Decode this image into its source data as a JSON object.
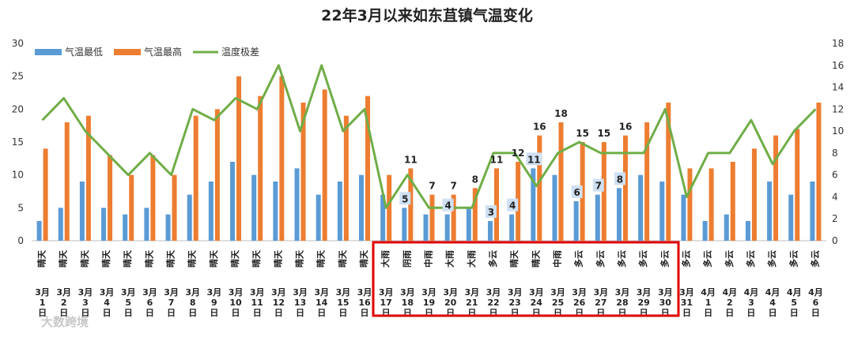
{
  "chart_data": {
    "type": "bar",
    "title": "22年3月以来如东苴镇气温变化",
    "categories": [
      "3月1日",
      "3月2日",
      "3月3日",
      "3月4日",
      "3月5日",
      "3月6日",
      "3月7日",
      "3月8日",
      "3月9日",
      "3月10日",
      "3月11日",
      "3月12日",
      "3月13日",
      "3月14日",
      "3月15日",
      "3月16日",
      "3月17日",
      "3月18日",
      "3月19日",
      "3月20日",
      "3月21日",
      "3月22日",
      "3月23日",
      "3月24日",
      "3月25日",
      "3月26日",
      "3月27日",
      "3月28日",
      "3月29日",
      "3月30日",
      "3月31日",
      "4月1日",
      "4月2日",
      "4月3日",
      "4月4日",
      "4月5日",
      "4月6日"
    ],
    "weather": [
      "晴天",
      "晴天",
      "晴天",
      "晴天",
      "晴天",
      "晴天",
      "晴天",
      "晴天",
      "晴天",
      "晴天",
      "晴天",
      "晴天",
      "晴天",
      "晴天",
      "晴天",
      "晴天",
      "大雨",
      "阴雨",
      "中雨",
      "大雨",
      "大雨",
      "多云",
      "晴天",
      "晴天",
      "中雨",
      "多云",
      "多云",
      "多云",
      "多云",
      "多云",
      "多云",
      "多云",
      "多云",
      "多云",
      "多云",
      "多云",
      "多云"
    ],
    "series": [
      {
        "name": "气温最低",
        "axis": "left",
        "color": "#5b9bd5",
        "values": [
          3,
          5,
          9,
          5,
          4,
          5,
          4,
          7,
          9,
          12,
          10,
          9,
          11,
          7,
          9,
          10,
          7,
          5,
          4,
          4,
          5,
          3,
          4,
          11,
          10,
          6,
          7,
          8,
          10,
          9,
          7,
          3,
          4,
          3,
          9,
          7,
          9
        ]
      },
      {
        "name": "气温最高",
        "axis": "left",
        "color": "#ed7d31",
        "values": [
          14,
          18,
          19,
          13,
          10,
          13,
          10,
          19,
          20,
          25,
          22,
          25,
          21,
          23,
          19,
          22,
          10,
          11,
          7,
          7,
          8,
          11,
          12,
          16,
          18,
          15,
          15,
          16,
          18,
          21,
          11,
          11,
          12,
          14,
          16,
          17,
          21
        ]
      },
      {
        "name": "温度极差",
        "axis": "right",
        "type": "line",
        "color": "#70ad47",
        "values": [
          11,
          13,
          10,
          8,
          6,
          8,
          6,
          12,
          11,
          13,
          12,
          16,
          10,
          16,
          10,
          12,
          3,
          6,
          3,
          3,
          3,
          8,
          8,
          5,
          8,
          9,
          8,
          8,
          8,
          12,
          4,
          8,
          8,
          11,
          7,
          10,
          12
        ]
      }
    ],
    "ylim_left": [
      0,
      30
    ],
    "yticks_left": [
      0,
      5,
      10,
      15,
      20,
      25,
      30
    ],
    "ylim_right": [
      0,
      18
    ],
    "yticks_right": [
      0,
      2,
      4,
      6,
      8,
      10,
      12,
      14,
      16,
      18
    ],
    "max_labels": {
      "17": "11",
      "18": "7",
      "19": "7",
      "20": "8",
      "21": "11",
      "22": "12",
      "23": "16",
      "24": "18",
      "25": "15",
      "26": "15",
      "27": "16"
    },
    "min_labels": {
      "17": "5",
      "19": "4",
      "21": "3",
      "22": "4",
      "23": "11",
      "25": "6",
      "26": "7",
      "27": "8"
    },
    "highlight": {
      "from": "3月17日",
      "to": "3月30日",
      "color": "#e00000"
    },
    "legend_position": "top-left",
    "grid": false
  },
  "watermark": "大数跨境"
}
